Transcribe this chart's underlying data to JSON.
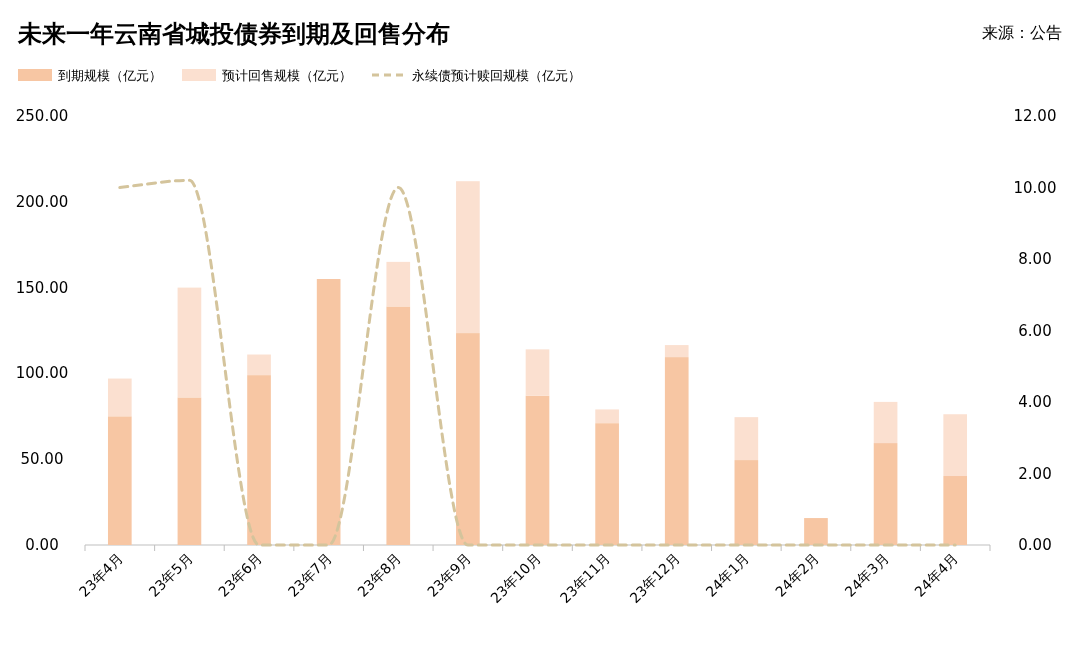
{
  "chart_data": {
    "type": "bar",
    "title": "未来一年云南省城投债券到期及回售分布",
    "annotations": [
      "来源：公告"
    ],
    "categories": [
      "23年4月",
      "23年5月",
      "23年6月",
      "23年7月",
      "23年8月",
      "23年9月",
      "23年10月",
      "23年11月",
      "23年12月",
      "24年1月",
      "24年2月",
      "24年3月",
      "24年4月"
    ],
    "stacked": true,
    "legend": "top left",
    "series": [
      {
        "name": "到期规模（亿元）",
        "color": "#f7c6a3",
        "values": [
          75,
          86,
          99,
          155,
          139,
          123.5,
          87,
          71,
          109.5,
          49.5,
          15.7,
          59.4,
          40.2
        ]
      },
      {
        "name": "预计回售规模（亿元）",
        "color": "#fbe0d0",
        "values": [
          22,
          64,
          12,
          0,
          26,
          88.5,
          27,
          8,
          7,
          25,
          0,
          24,
          36
        ]
      },
      {
        "name": "永续债预计赎回规模（亿元）",
        "type": "line",
        "axis": "y2",
        "line_style": "dashed",
        "color": "#d4c49c",
        "values": [
          10,
          10.2,
          0,
          0,
          10,
          0,
          0,
          0,
          0,
          0,
          0,
          0,
          0
        ]
      }
    ],
    "ylim": [
      0,
      250
    ],
    "yticks": [
      {
        "value": 0,
        "label": "0.00"
      },
      {
        "value": 50,
        "label": "50.00"
      },
      {
        "value": 100,
        "label": "100.00"
      },
      {
        "value": 150,
        "label": "150.00"
      },
      {
        "value": 200,
        "label": "200.00"
      },
      {
        "value": 250,
        "label": "250.00"
      }
    ],
    "y2lim": [
      0,
      12
    ],
    "y2ticks": [
      {
        "value": 0,
        "label": "0.00"
      },
      {
        "value": 2,
        "label": "2.00"
      },
      {
        "value": 4,
        "label": "4.00"
      },
      {
        "value": 6,
        "label": "6.00"
      },
      {
        "value": 8,
        "label": "8.00"
      },
      {
        "value": 10,
        "label": "10.00"
      },
      {
        "value": 12,
        "label": "12.00"
      }
    ]
  }
}
